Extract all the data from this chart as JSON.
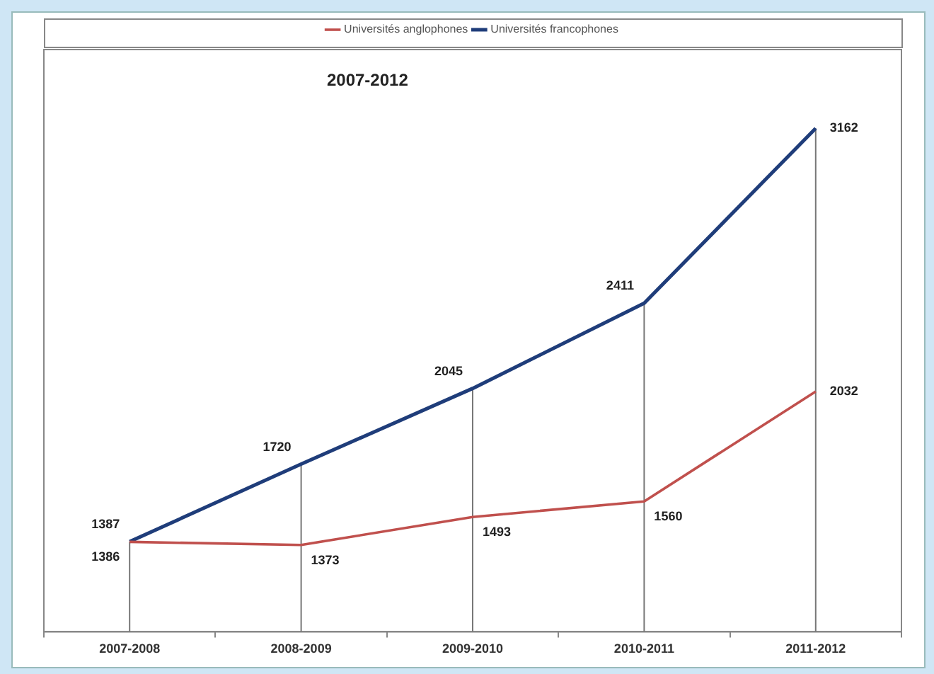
{
  "chart_data": {
    "type": "line",
    "title": "2007-2012",
    "categories": [
      "2007-2008",
      "2008-2009",
      "2009-2010",
      "2010-2011",
      "2011-2012"
    ],
    "series": [
      {
        "name": "Universités anglophones",
        "color": "#c0504d",
        "values": [
          1386,
          1373,
          1493,
          1560,
          2032
        ]
      },
      {
        "name": "Universités francophones",
        "color": "#1f3d7a",
        "values": [
          1387,
          1720,
          2045,
          2411,
          3162
        ]
      }
    ],
    "data_labels": true,
    "legend": "top",
    "grid": "x",
    "marker": "none",
    "line_style": "solid"
  }
}
